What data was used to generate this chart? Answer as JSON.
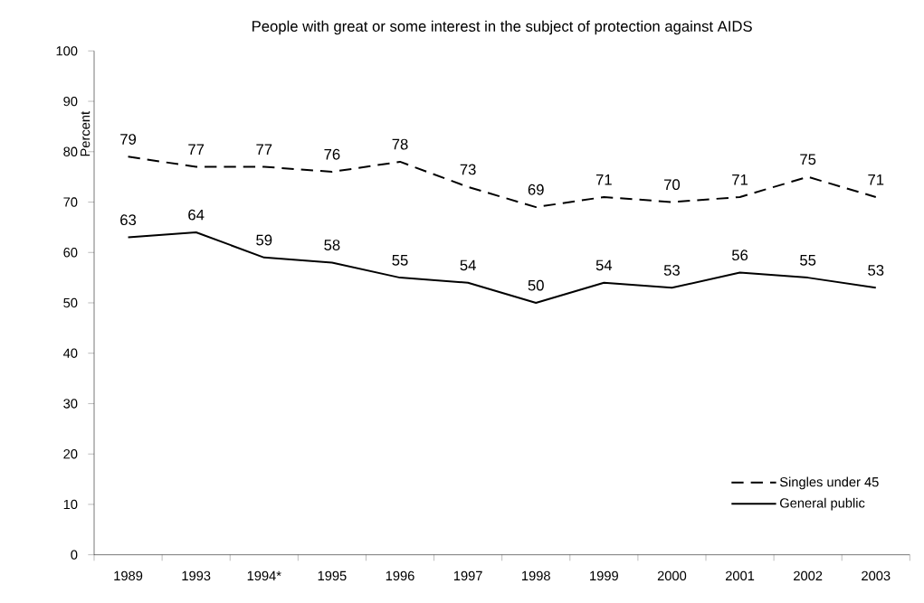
{
  "chart_data": {
    "type": "line",
    "title": "People with great or some interest in the subject of protection against AIDS",
    "ylabel": "Percent",
    "categories": [
      "1989",
      "1993",
      "1994*",
      "1995",
      "1996",
      "1997",
      "1998",
      "1999",
      "2000",
      "2001",
      "2002",
      "2003"
    ],
    "series": [
      {
        "name": "Singles under 45",
        "color": "#000000",
        "line_style": "dashed",
        "values": [
          79,
          77,
          77,
          76,
          78,
          73,
          69,
          71,
          70,
          71,
          75,
          71
        ]
      },
      {
        "name": "General public",
        "color": "#000000",
        "line_style": "solid",
        "values": [
          63,
          64,
          59,
          58,
          55,
          54,
          50,
          54,
          53,
          56,
          55,
          53
        ]
      }
    ],
    "ylim": [
      0,
      100
    ],
    "yticks": [
      0,
      10,
      20,
      30,
      40,
      50,
      60,
      70,
      80,
      90,
      100
    ],
    "grid": false,
    "legend": "bottom right",
    "marker": "none",
    "data_labels": true
  }
}
